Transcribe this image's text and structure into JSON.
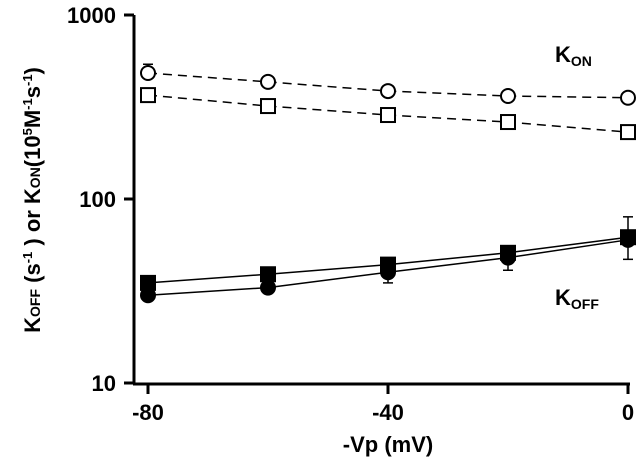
{
  "chart_data": {
    "type": "scatter",
    "xlabel": "-Vp (mV)",
    "ylabel_parts": {
      "k1": "K",
      "off": "OFF",
      "s": " (s",
      "m1": "-1",
      "or": " ) or K",
      "on": "ON",
      "unit": "(10",
      "five": "5",
      "m": "M",
      "s2": "s",
      "close": ")"
    },
    "x_ticks": [
      "-80",
      "-40",
      "0"
    ],
    "y_ticks": [
      "10",
      "100",
      "1000"
    ],
    "xlim": [
      -80,
      0
    ],
    "ylim": [
      10,
      1000
    ],
    "y_scale": "log",
    "labels": {
      "kon_k": "K",
      "kon_sub": "ON",
      "koff_k": "K",
      "koff_sub": "OFF"
    },
    "x": [
      -80,
      -60,
      -40,
      -20,
      0
    ],
    "series": [
      {
        "marker": "open-circle",
        "line": "dashed",
        "values": [
          484,
          433,
          386,
          363,
          355
        ],
        "err_upper": [
          540,
          null,
          null,
          null,
          null
        ]
      },
      {
        "marker": "open-square",
        "line": "dashed",
        "values": [
          367,
          320,
          286,
          262,
          231
        ]
      },
      {
        "marker": "filled-square",
        "line": "solid",
        "values": [
          35,
          39,
          44,
          51,
          62
        ]
      },
      {
        "marker": "filled-circle",
        "line": "solid",
        "values": [
          30,
          33,
          40,
          48,
          60
        ],
        "err_lower": [
          null,
          null,
          35,
          41,
          47
        ],
        "err_upper": [
          null,
          null,
          null,
          null,
          80
        ]
      }
    ]
  }
}
